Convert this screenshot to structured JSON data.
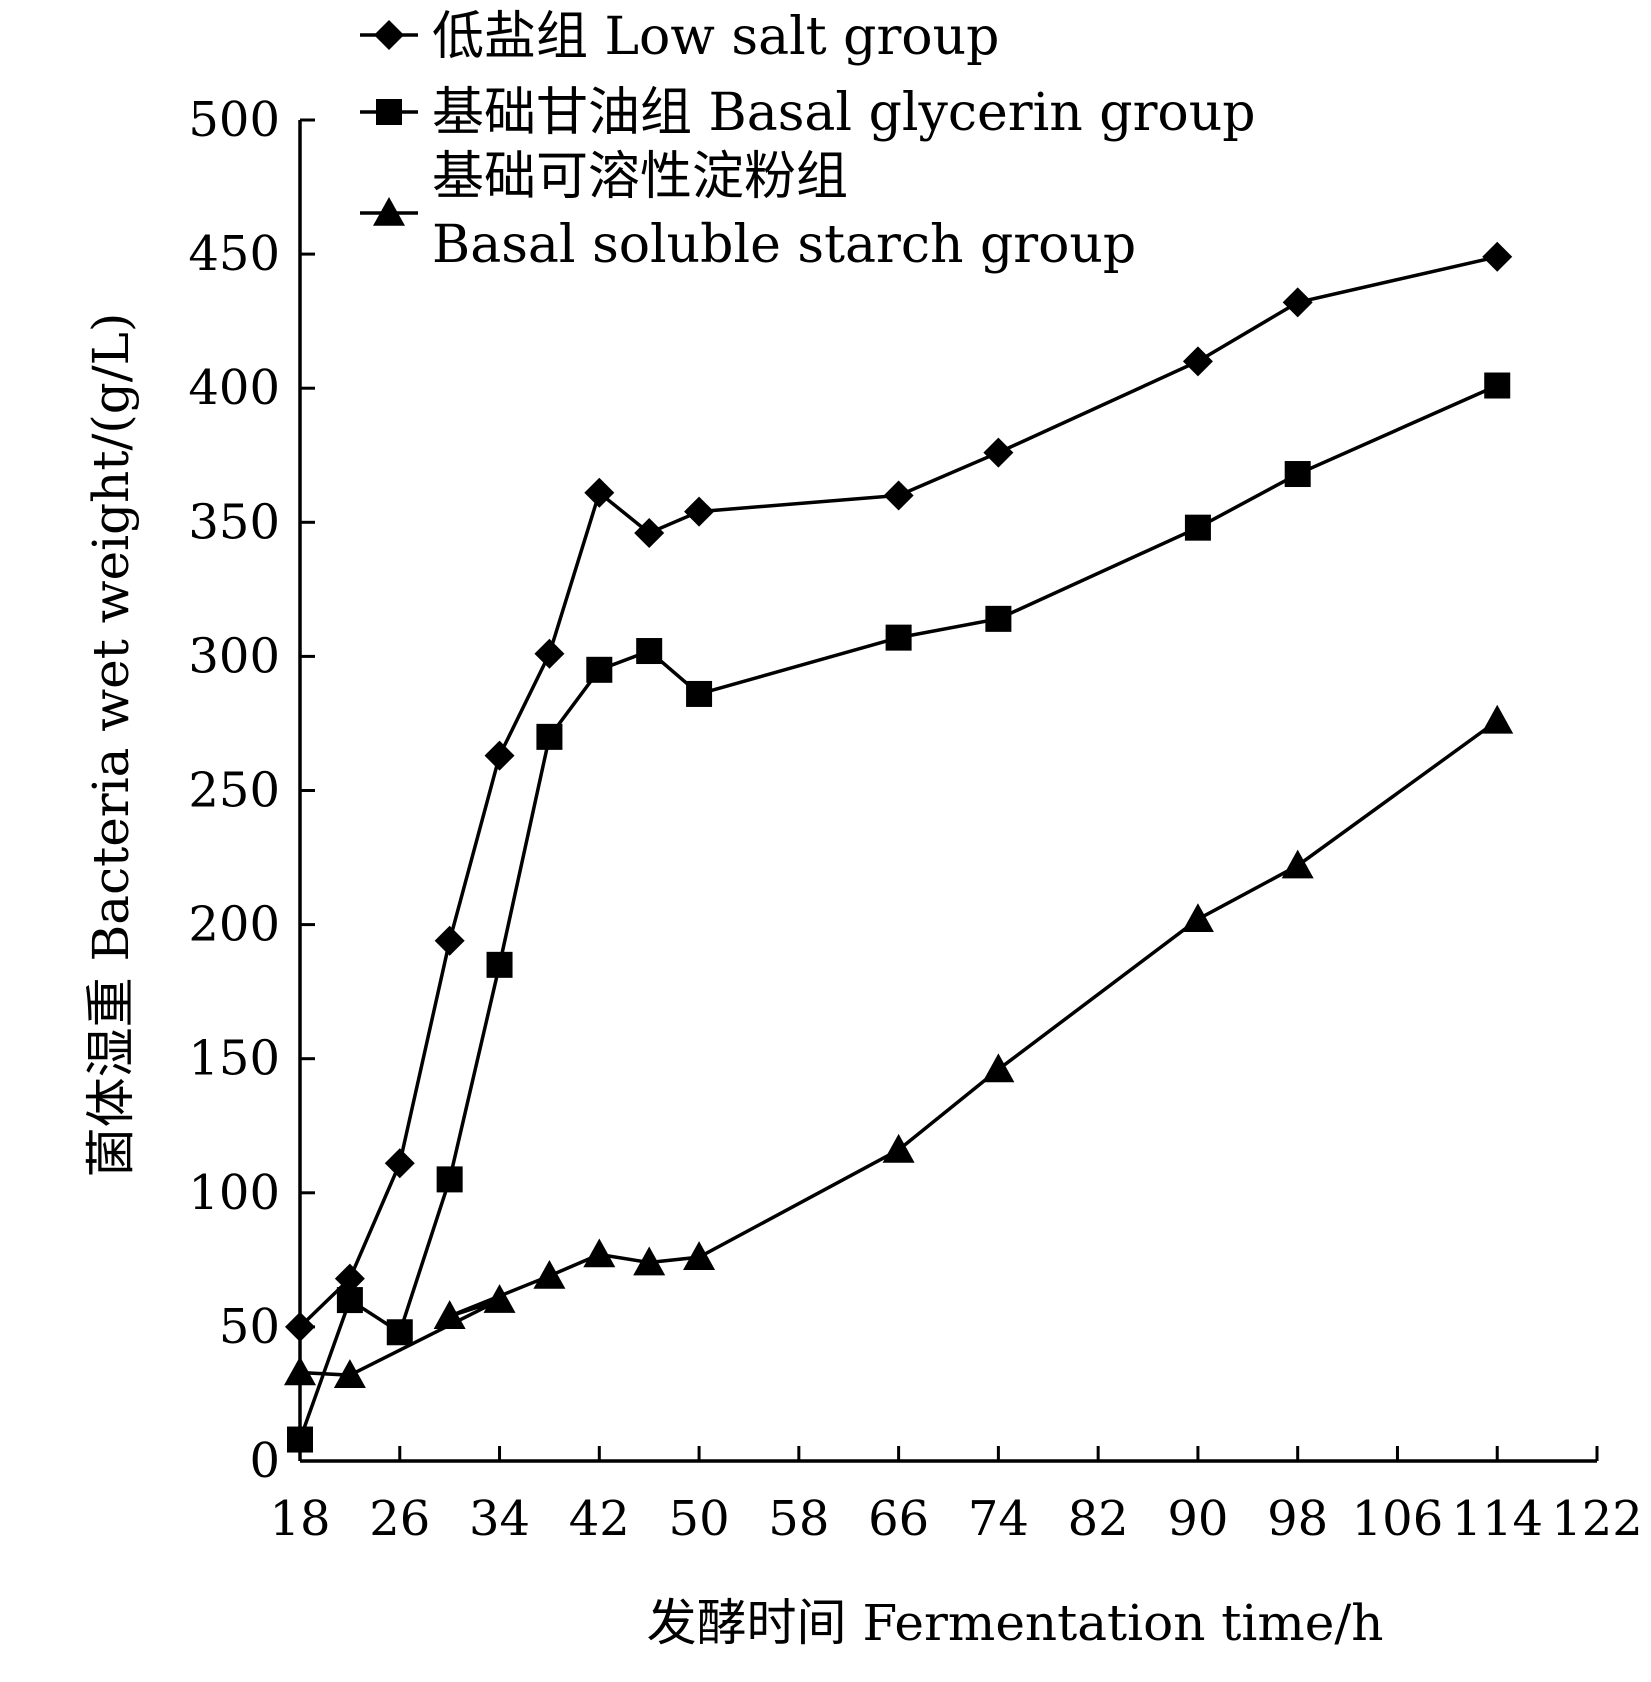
{
  "chart_data": {
    "type": "line",
    "title": "",
    "xlabel": "发酵时间 Fermentation time/h",
    "ylabel": "菌体湿重 Bacteria wet weight/(g/L)",
    "xlim": [
      18,
      122
    ],
    "ylim": [
      0,
      500
    ],
    "x_ticks": [
      18,
      26,
      34,
      42,
      50,
      58,
      66,
      74,
      82,
      90,
      98,
      106,
      114,
      122
    ],
    "y_ticks": [
      0,
      50,
      100,
      150,
      200,
      250,
      300,
      350,
      400,
      450,
      500
    ],
    "grid": false,
    "legend_position": "top-left",
    "series": [
      {
        "name": "低盐组  Low salt group",
        "marker": "diamond",
        "x": [
          18,
          22,
          26,
          30,
          34,
          38,
          42,
          46,
          50,
          66,
          74,
          90,
          98,
          114
        ],
        "y": [
          50,
          68,
          111,
          194,
          263,
          301,
          361,
          346,
          354,
          360,
          376,
          410,
          432,
          449
        ]
      },
      {
        "name": "基础甘油组  Basal glycerin group",
        "marker": "square",
        "x": [
          18,
          22,
          26,
          30,
          34,
          38,
          42,
          46,
          50,
          66,
          74,
          90,
          98,
          114
        ],
        "y": [
          8,
          60,
          48,
          105,
          185,
          270,
          295,
          302,
          286,
          307,
          314,
          348,
          368,
          401
        ]
      },
      {
        "name": "基础可溶性淀粉组",
        "name_line2": "Basal soluble starch group",
        "marker": "triangle",
        "x": [
          18,
          22,
          34,
          30,
          38,
          42,
          46,
          50,
          66,
          74,
          90,
          98,
          114
        ],
        "y": [
          33,
          32,
          60,
          54,
          69,
          77,
          74,
          76,
          116,
          146,
          202,
          222,
          276
        ]
      }
    ]
  }
}
